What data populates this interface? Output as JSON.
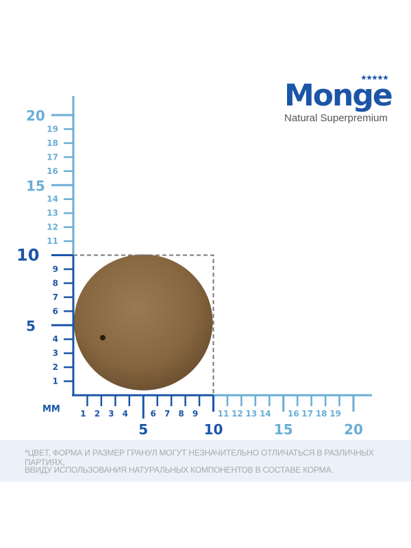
{
  "logo": {
    "brand": "Monge",
    "tagline": "Natural Superpremium",
    "color": "#1b55a8"
  },
  "ruler": {
    "unit_label": "ММ",
    "range_mm": [
      0,
      20
    ],
    "colors": {
      "near": "#1b55a8",
      "far": "#6aaed6",
      "guide": "#777777"
    },
    "y_minor_labels": [
      "1",
      "2",
      "3",
      "4",
      "6",
      "7",
      "8",
      "9",
      "11",
      "12",
      "13",
      "14",
      "16",
      "17",
      "18",
      "19"
    ],
    "y_major_labels": [
      "5",
      "10",
      "15",
      "20"
    ],
    "x_minor_labels": [
      "1",
      "2",
      "3",
      "4",
      "6",
      "7",
      "8",
      "9",
      "11",
      "12",
      "13",
      "14",
      "16",
      "17",
      "18",
      "19"
    ],
    "x_major_labels": [
      "5",
      "10",
      "15",
      "20"
    ],
    "guide_box_mm": 10
  },
  "kibble": {
    "diameter_mm": 10,
    "color": "#8b6a45"
  },
  "footer": {
    "line1": "*ЦВЕТ, ФОРМА И РАЗМЕР ГРАНУЛ МОГУТ НЕЗНАЧИТЕЛЬНО ОТЛИЧАТЬСЯ В РАЗЛИЧНЫХ ПАРТИЯХ,",
    "line2": "ВВИДУ ИСПОЛЬЗОВАНИЯ НАТУРАЛЬНЫХ КОМПОНЕНТОВ В СОСТАВЕ КОРМА."
  }
}
